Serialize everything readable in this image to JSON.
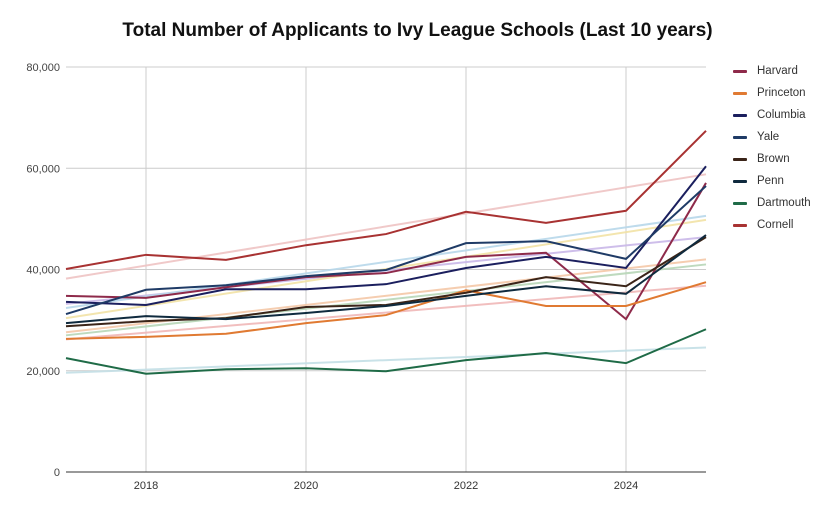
{
  "chart_data": {
    "type": "line",
    "title": "Total Number of Applicants to Ivy League Schools (Last 10 years)",
    "xlabel": "",
    "ylabel": "",
    "x": [
      2017,
      2018,
      2019,
      2020,
      2021,
      2022,
      2023,
      2024,
      2025
    ],
    "x_ticks": [
      "2018",
      "2020",
      "2022",
      "2024"
    ],
    "x_range": [
      2017,
      2025
    ],
    "y_ticks": [
      "0",
      "20,000",
      "40,000",
      "60,000",
      "80,000"
    ],
    "ylim": [
      0,
      80000
    ],
    "grid": true,
    "legend_position": "right",
    "series": [
      {
        "name": "Harvard",
        "color": "#8e2a4a",
        "values": [
          34800,
          34400,
          36500,
          38500,
          39300,
          42500,
          43300,
          30200,
          57100
        ],
        "trend": [
          33200,
          46400
        ],
        "trend_color": "#c9b8e8"
      },
      {
        "name": "Princeton",
        "color": "#e07a32",
        "values": [
          26300,
          26700,
          27300,
          29400,
          31000,
          35900,
          32800,
          32800,
          37500
        ],
        "trend": [
          26200,
          36800
        ],
        "trend_color": "#f0b8b8"
      },
      {
        "name": "Columbia",
        "color": "#1b1f5e",
        "values": [
          33600,
          33000,
          36100,
          36100,
          37100,
          40300,
          42500,
          40300,
          60400
        ],
        "trend": [
          32400,
          50600
        ],
        "trend_color": "#b8d8ea"
      },
      {
        "name": "Yale",
        "color": "#1f3b66",
        "values": [
          31200,
          36000,
          36900,
          38700,
          39900,
          45200,
          45600,
          42100,
          56500
        ],
        "trend": [
          30400,
          49800
        ],
        "trend_color": "#f2e3a6"
      },
      {
        "name": "Brown",
        "color": "#3a2418",
        "values": [
          28800,
          29800,
          30400,
          32600,
          33000,
          35400,
          38500,
          36700,
          46400
        ],
        "trend": [
          27600,
          42000
        ],
        "trend_color": "#f4c8a8"
      },
      {
        "name": "Penn",
        "color": "#0f2a3e",
        "values": [
          29400,
          30800,
          30200,
          31400,
          32800,
          34800,
          36700,
          35200,
          46800
        ],
        "trend": [
          27000,
          41000
        ],
        "trend_color": "#b8d6b8"
      },
      {
        "name": "Dartmouth",
        "color": "#1f6b47",
        "values": [
          22500,
          19400,
          20300,
          20500,
          19900,
          22100,
          23500,
          21500,
          28200
        ],
        "trend": [
          19600,
          24600
        ],
        "trend_color": "#c4dfe6"
      },
      {
        "name": "Cornell",
        "color": "#a83232",
        "values": [
          40100,
          42900,
          41900,
          44800,
          47000,
          51400,
          49200,
          51600,
          67400
        ],
        "trend": [
          38200,
          58800
        ],
        "trend_color": "#efc4c4"
      }
    ]
  }
}
